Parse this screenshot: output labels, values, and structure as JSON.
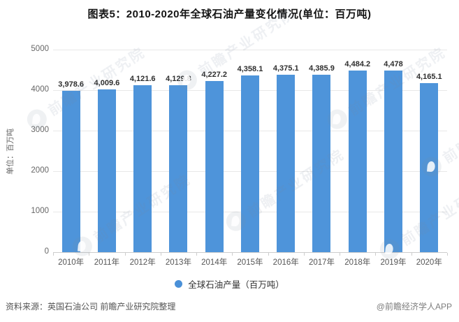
{
  "title": "图表5：2010-2020年全球石油产量变化情况(单位：百万吨)",
  "y_axis": {
    "unit_label": "单位：百万吨",
    "ticks": [
      "5000",
      "4000",
      "3000",
      "2000",
      "1000",
      "0"
    ]
  },
  "legend": {
    "label": "全球石油产量（百万吨）",
    "marker_color": "#4a90d8"
  },
  "footer": {
    "source": "资料来源：英国石油公司 前瞻产业研究院整理",
    "credit": "@前瞻经济学人APP"
  },
  "watermark": {
    "text": "前瞻产业研究院"
  },
  "chart_data": {
    "type": "bar",
    "title": "图表5：2010-2020年全球石油产量变化情况(单位：百万吨)",
    "categories": [
      "2010年",
      "2011年",
      "2012年",
      "2013年",
      "2014年",
      "2015年",
      "2016年",
      "2017年",
      "2018年",
      "2019年",
      "2020年"
    ],
    "values": [
      3978.6,
      4009.6,
      4121.6,
      4129.8,
      4227.2,
      4358.1,
      4375.1,
      4385.9,
      4484.2,
      4478,
      4165.1
    ],
    "value_labels": [
      "3,978.6",
      "4,009.6",
      "4,121.6",
      "4,129.8",
      "4,227.2",
      "4,358.1",
      "4,375.1",
      "4,385.9",
      "4,484.2",
      "4,478",
      "4,165.1"
    ],
    "series_name": "全球石油产量（百万吨）",
    "xlabel": "",
    "ylabel": "单位：百万吨",
    "ylim": [
      0,
      5000
    ],
    "y_tick_step": 1000,
    "grid": true,
    "legend_position": "bottom",
    "bar_color": "#4e94da"
  }
}
